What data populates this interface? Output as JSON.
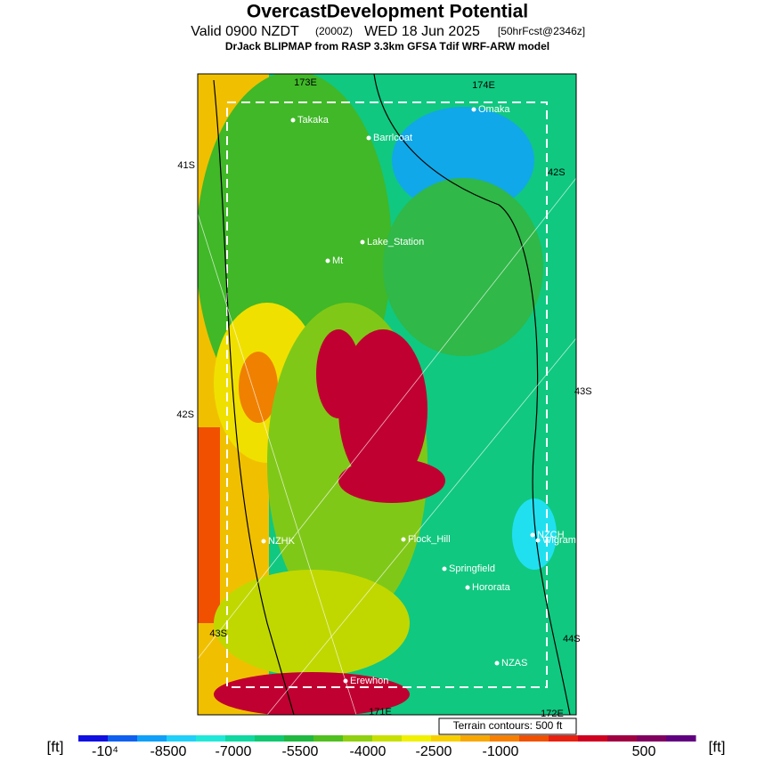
{
  "header": {
    "title": "OvercastDevelopment Potential",
    "valid": "Valid 0900 NZDT",
    "utc": "(2000Z)",
    "date": "WED 18 Jun 2025",
    "forecast": "[50hrFcst@2346z]",
    "model": "DrJack BLIPMAP from RASP 3.3km GFSA Tdif WRF-ARW model"
  },
  "places": [
    "Takaka",
    "Barrlcoat",
    "Omaka",
    "Lake_Station",
    "Mt",
    "NZHK",
    "Flock_Hill",
    "Springfield",
    "Hororata",
    "NZCH",
    "Wigram",
    "NZAS",
    "Erewhon"
  ],
  "grid_labels": [
    "173E",
    "174E",
    "41S",
    "42S",
    "43S",
    "42S",
    "43S",
    "44S",
    "171E",
    "172E"
  ],
  "note": "Terrain contours: 500 ft",
  "colorbar": {
    "unit": "[ft]",
    "labels": [
      "-10⁴",
      "-8500",
      "-7000",
      "-5500",
      "-4000",
      "-2500",
      "-1000",
      "500"
    ],
    "colors": [
      "#1010e0",
      "#1060f0",
      "#10a0f8",
      "#20d0f8",
      "#20e8d8",
      "#10d8a0",
      "#10c870",
      "#20b840",
      "#50c020",
      "#90d010",
      "#c8e000",
      "#f0f000",
      "#f8d000",
      "#f8a800",
      "#f88000",
      "#f05000",
      "#e82010",
      "#d00020",
      "#a00040",
      "#800060",
      "#600080"
    ]
  }
}
